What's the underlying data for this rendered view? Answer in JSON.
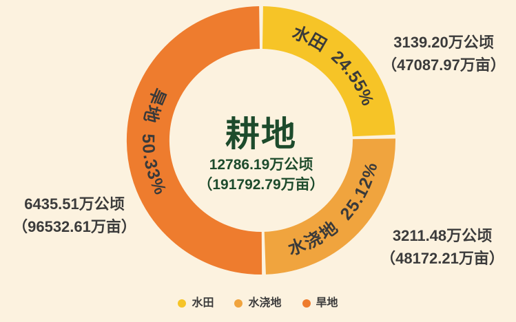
{
  "background_color": "#FCF2DF",
  "chart_data": {
    "type": "pie",
    "subtype": "donut",
    "title": "耕地",
    "legend_position": "bottom",
    "center": {
      "title": "耕地",
      "total_hectares": "12786.19万公顷",
      "total_mu": "（191792.79万亩）",
      "text_color": "#1D4B2C"
    },
    "segments": [
      {
        "id": "paddy",
        "label": "水田",
        "pct": 24.55,
        "ring_label": "水田  24.55%",
        "hectares": "3139.20万公顷",
        "mu": "（47087.97万亩）",
        "color": "#F6C427"
      },
      {
        "id": "irrigated",
        "label": "水浇地",
        "pct": 25.12,
        "ring_label": "水浇地  25.12%",
        "hectares": "3211.48万公顷",
        "mu": "（48172.21万亩）",
        "color": "#F0A43E"
      },
      {
        "id": "dryland",
        "label": "旱地",
        "pct": 50.33,
        "ring_label": "旱地  50.33%",
        "hectares": "6435.51万公顷",
        "mu": "（96532.61万亩）",
        "color": "#EE7C2E"
      }
    ],
    "label_text_color": "#3B3B3B"
  }
}
